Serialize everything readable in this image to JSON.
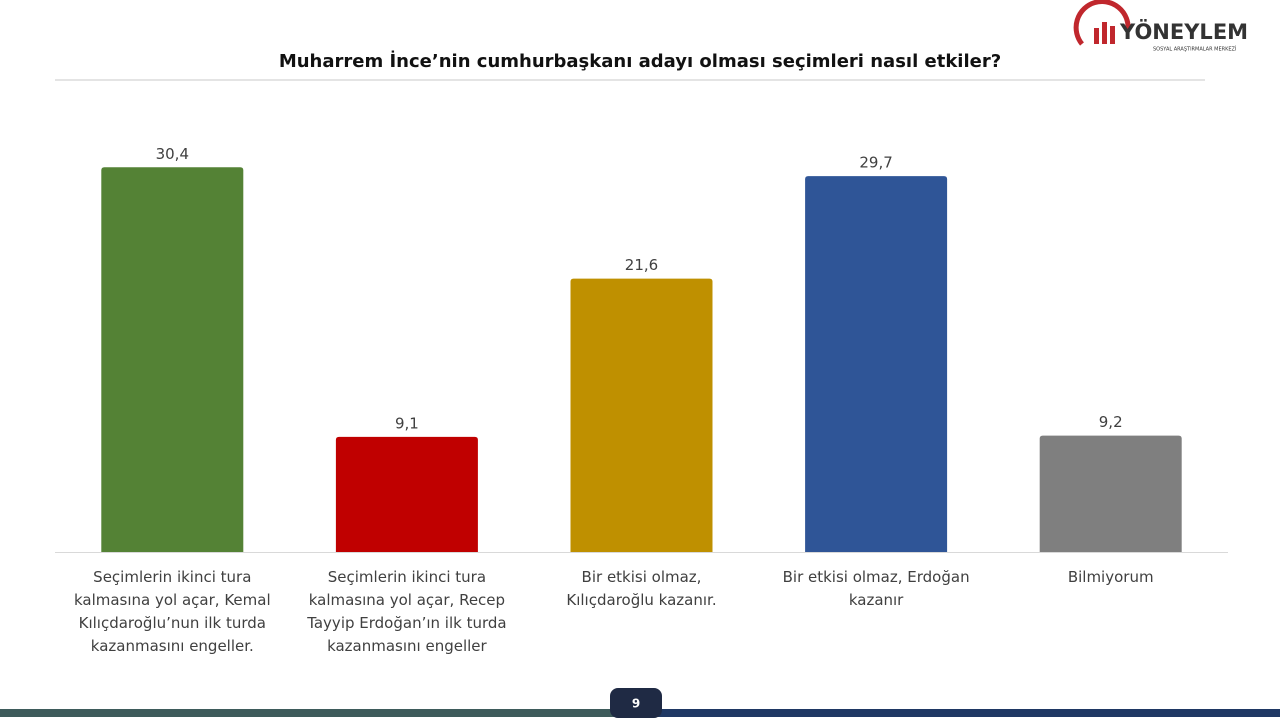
{
  "chart_data": {
    "type": "bar",
    "title": "Muharrem İnce’nin cumhurbaşkanı adayı olması seçimleri nasıl etkiler?",
    "categories": [
      "Seçimlerin ikinci tura kalmasına yol açar, Kemal Kılıçdaroğlu’nun ilk turda kazanmasını engeller.",
      "Seçimlerin ikinci tura kalmasına yol açar, Recep Tayyip Erdoğan’ın ilk turda kazanmasını engeller",
      "Bir etkisi olmaz, Kılıçdaroğlu kazanır.",
      "Bir etkisi olmaz, Erdoğan kazanır",
      "Bilmiyorum"
    ],
    "values": [
      30.4,
      9.1,
      21.6,
      29.7,
      9.2
    ],
    "value_labels": [
      "30,4",
      "9,1",
      "21,6",
      "29,7",
      "9,2"
    ],
    "colors": [
      "#548235",
      "#c00000",
      "#bf9000",
      "#2f5597",
      "#7f7f7f"
    ],
    "ylim": [
      0,
      32
    ]
  },
  "logo": {
    "name": "YÖNEYLEM",
    "subtitle": "SOSYAL ARAŞTIRMALAR MERKEZİ"
  },
  "page_number": "9"
}
